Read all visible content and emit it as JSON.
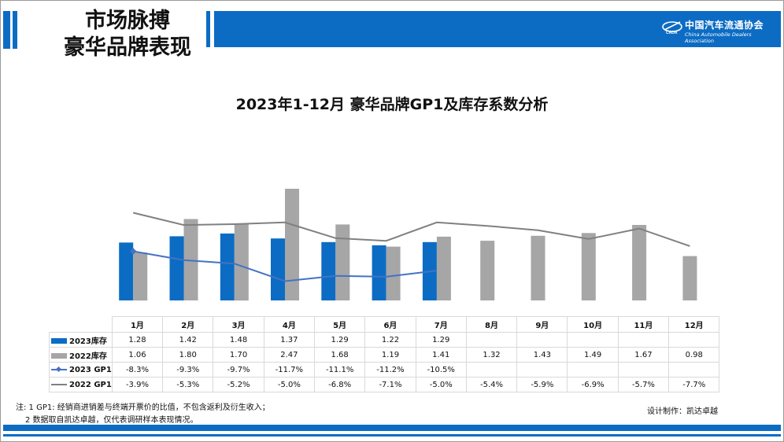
{
  "header": {
    "title_line1": "市场脉搏",
    "title_line2": "豪华品牌表现",
    "logo_cn": "中国汽车流通协会",
    "logo_en": "China Automobile Dealers Association",
    "accent_color": "#0c6cc4"
  },
  "chart_data": {
    "type": "bar",
    "title": "2023年1-12月 豪华品牌GP1及库存系数分析",
    "categories": [
      "1月",
      "2月",
      "3月",
      "4月",
      "5月",
      "6月",
      "7月",
      "8月",
      "9月",
      "10月",
      "11月",
      "12月"
    ],
    "series": [
      {
        "name": "2023库存",
        "kind": "bar",
        "color": "#0c6cc4",
        "values": [
          1.28,
          1.42,
          1.48,
          1.37,
          1.29,
          1.22,
          1.29,
          null,
          null,
          null,
          null,
          null
        ],
        "labels": [
          "1.28",
          "1.42",
          "1.48",
          "1.37",
          "1.29",
          "1.22",
          "1.29",
          "",
          "",
          "",
          "",
          ""
        ]
      },
      {
        "name": "2022库存",
        "kind": "bar",
        "color": "#a6a6a6",
        "values": [
          1.06,
          1.8,
          1.7,
          2.47,
          1.68,
          1.19,
          1.41,
          1.32,
          1.43,
          1.49,
          1.67,
          0.98
        ],
        "labels": [
          "1.06",
          "1.80",
          "1.70",
          "2.47",
          "1.68",
          "1.19",
          "1.41",
          "1.32",
          "1.43",
          "1.49",
          "1.67",
          "0.98"
        ]
      },
      {
        "name": "2023 GP1",
        "kind": "line",
        "color": "#4472c4",
        "marker": true,
        "values": [
          -8.3,
          -9.3,
          -9.7,
          -11.7,
          -11.1,
          -11.2,
          -10.5,
          null,
          null,
          null,
          null,
          null
        ],
        "labels": [
          "-8.3%",
          "-9.3%",
          "-9.7%",
          "-11.7%",
          "-11.1%",
          "-11.2%",
          "-10.5%",
          "",
          "",
          "",
          "",
          ""
        ]
      },
      {
        "name": "2022 GP1",
        "kind": "line",
        "color": "#808080",
        "marker": false,
        "values": [
          -3.9,
          -5.3,
          -5.2,
          -5.0,
          -6.8,
          -7.1,
          -5.0,
          -5.4,
          -5.9,
          -6.9,
          -5.7,
          -7.7
        ],
        "labels": [
          "-3.9%",
          "-5.3%",
          "-5.2%",
          "-5.0%",
          "-6.8%",
          "-7.1%",
          "-5.0%",
          "-5.4%",
          "-5.9%",
          "-6.9%",
          "-5.7%",
          "-7.7%"
        ]
      }
    ],
    "bar_axis_range": [
      0,
      2.5
    ],
    "line_axis_range": [
      -20,
      0
    ],
    "grid": false,
    "legend": "data-table"
  },
  "notes": {
    "line1": "注: 1  GP1: 经销商进销差与终端开票价的比值，不包含返利及衍生收入；",
    "line2": "2 数据取自凯达卓越，仅代表调研样本表现情况。",
    "designer": "设计制作：凯达卓越"
  }
}
